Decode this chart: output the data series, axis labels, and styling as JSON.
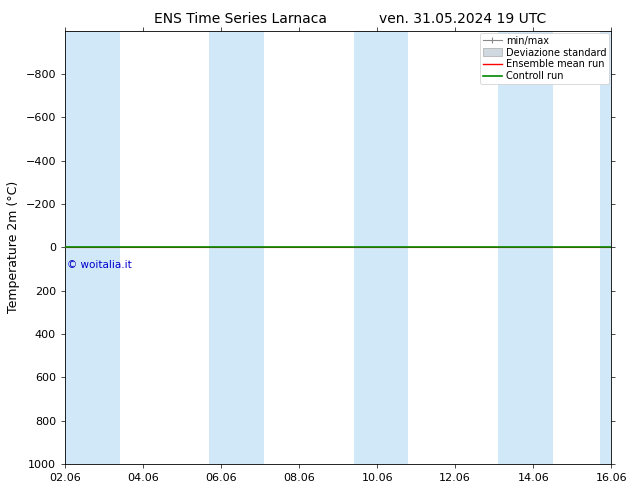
{
  "title_left": "ENS Time Series Larnaca",
  "title_right": "ven. 31.05.2024 19 UTC",
  "ylabel": "Temperature 2m (°C)",
  "watermark": "© woitalia.it",
  "ylim_bottom": 1000,
  "ylim_top": -1000,
  "yticks": [
    -800,
    -600,
    -400,
    -200,
    0,
    200,
    400,
    600,
    800,
    1000
  ],
  "xtick_labels": [
    "02.06",
    "04.06",
    "06.06",
    "08.06",
    "10.06",
    "12.06",
    "14.06",
    "16.06"
  ],
  "xtick_pos": [
    0,
    2,
    4,
    6,
    8,
    10,
    12,
    14
  ],
  "xlim": [
    0,
    14
  ],
  "shaded_bands_x": [
    [
      0,
      1.4
    ],
    [
      3.7,
      5.1
    ],
    [
      7.4,
      8.8
    ],
    [
      11.1,
      12.5
    ],
    [
      13.7,
      14
    ]
  ],
  "shade_color": "#d0e8f8",
  "line_y": 0,
  "ensemble_mean_color": "#ff0000",
  "control_run_color": "#008800",
  "bg_color": "#ffffff",
  "plot_bg_color": "#ffffff",
  "legend_items": [
    "min/max",
    "Deviazione standard",
    "Ensemble mean run",
    "Controll run"
  ],
  "title_fontsize": 10,
  "tick_fontsize": 8,
  "ylabel_fontsize": 9,
  "watermark_color": "#0000cc"
}
